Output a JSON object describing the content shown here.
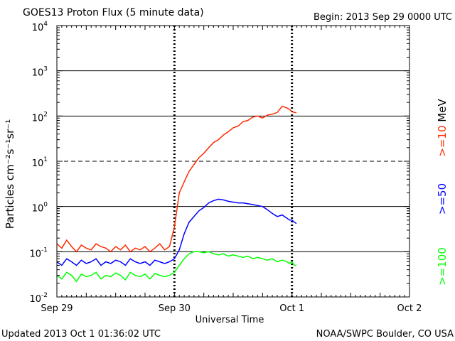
{
  "header": {
    "title": "GOES13 Proton Flux (5 minute data)",
    "begin": "Begin: 2013 Sep 29 0000 UTC"
  },
  "footer": {
    "updated": "Updated 2013 Oct  1 01:36:02 UTC",
    "credit": "NOAA/SWPC Boulder, CO USA"
  },
  "chart_data": {
    "type": "line",
    "title": "GOES13 Proton Flux (5 minute data)",
    "xlabel": "Universal Time",
    "ylabel": "Particles cm⁻²s⁻¹sr⁻¹",
    "y_scale": "log",
    "ylim": [
      0.01,
      10000
    ],
    "xlim_hours": [
      0,
      72
    ],
    "x_ticks": [
      {
        "label": "Sep 29",
        "hour": 0
      },
      {
        "label": "Sep 30",
        "hour": 24
      },
      {
        "label": "Oct 1",
        "hour": 48
      },
      {
        "label": "Oct 2",
        "hour": 72
      }
    ],
    "y_ticks": [
      {
        "mant": "10",
        "exp": "-2",
        "value": 0.01
      },
      {
        "mant": "10",
        "exp": "-1",
        "value": 0.1
      },
      {
        "mant": "10",
        "exp": "0",
        "value": 1
      },
      {
        "mant": "10",
        "exp": "1",
        "value": 10
      },
      {
        "mant": "10",
        "exp": "2",
        "value": 100
      },
      {
        "mant": "10",
        "exp": "3",
        "value": 1000
      },
      {
        "mant": "10",
        "exp": "4",
        "value": 10000
      }
    ],
    "hlines": [
      {
        "value": 1000,
        "style": "solid"
      },
      {
        "value": 100,
        "style": "solid"
      },
      {
        "value": 10,
        "style": "dashed"
      },
      {
        "value": 1,
        "style": "solid"
      },
      {
        "value": 0.1,
        "style": "solid"
      }
    ],
    "vlines_hours": [
      24,
      48
    ],
    "legend_placement": "right",
    "series": [
      {
        "name": ">=10",
        "legend_label": ">=10  MeV",
        "color": "#ff2a00",
        "x": [
          0,
          1,
          2,
          3,
          4,
          5,
          6,
          7,
          8,
          9,
          10,
          11,
          12,
          13,
          14,
          15,
          16,
          17,
          18,
          19,
          20,
          21,
          22,
          23,
          24,
          25,
          26,
          27,
          28,
          29,
          30,
          31,
          32,
          33,
          34,
          35,
          36,
          37,
          38,
          39,
          40,
          41,
          42,
          43,
          44,
          45,
          46,
          47,
          47.5,
          48,
          48.5,
          48.9
        ],
        "y": [
          0.15,
          0.12,
          0.18,
          0.13,
          0.1,
          0.14,
          0.12,
          0.11,
          0.15,
          0.13,
          0.12,
          0.1,
          0.13,
          0.11,
          0.14,
          0.1,
          0.12,
          0.11,
          0.13,
          0.1,
          0.12,
          0.15,
          0.11,
          0.13,
          0.35,
          2.0,
          3.5,
          6.0,
          8.5,
          12,
          15,
          20,
          26,
          30,
          38,
          45,
          55,
          60,
          75,
          80,
          95,
          100,
          90,
          105,
          110,
          120,
          165,
          150,
          140,
          125,
          120,
          118
        ]
      },
      {
        "name": ">=50",
        "legend_label": ">=50",
        "color": "#0000ff",
        "x": [
          0,
          1,
          2,
          3,
          4,
          5,
          6,
          7,
          8,
          9,
          10,
          11,
          12,
          13,
          14,
          15,
          16,
          17,
          18,
          19,
          20,
          21,
          22,
          23,
          24,
          25,
          26,
          27,
          28,
          29,
          30,
          31,
          32,
          33,
          34,
          35,
          36,
          37,
          38,
          39,
          40,
          41,
          42,
          43,
          44,
          45,
          46,
          47,
          47.5,
          48,
          48.5,
          48.9
        ],
        "y": [
          0.06,
          0.05,
          0.07,
          0.06,
          0.05,
          0.065,
          0.055,
          0.06,
          0.07,
          0.05,
          0.06,
          0.055,
          0.065,
          0.06,
          0.05,
          0.07,
          0.06,
          0.055,
          0.06,
          0.05,
          0.065,
          0.06,
          0.055,
          0.06,
          0.07,
          0.11,
          0.25,
          0.45,
          0.6,
          0.8,
          0.95,
          1.2,
          1.35,
          1.45,
          1.4,
          1.3,
          1.25,
          1.2,
          1.2,
          1.15,
          1.1,
          1.05,
          1.0,
          0.85,
          0.7,
          0.6,
          0.65,
          0.55,
          0.5,
          0.5,
          0.45,
          0.42
        ]
      },
      {
        "name": ">=100",
        "legend_label": ">=100",
        "color": "#00ff00",
        "x": [
          0,
          1,
          2,
          3,
          4,
          5,
          6,
          7,
          8,
          9,
          10,
          11,
          12,
          13,
          14,
          15,
          16,
          17,
          18,
          19,
          20,
          21,
          22,
          23,
          24,
          25,
          26,
          27,
          28,
          29,
          30,
          31,
          32,
          33,
          34,
          35,
          36,
          37,
          38,
          39,
          40,
          41,
          42,
          43,
          44,
          45,
          46,
          47,
          47.5,
          48,
          48.5,
          48.9
        ],
        "y": [
          0.03,
          0.025,
          0.035,
          0.03,
          0.022,
          0.032,
          0.028,
          0.03,
          0.035,
          0.025,
          0.03,
          0.028,
          0.034,
          0.03,
          0.024,
          0.035,
          0.03,
          0.028,
          0.032,
          0.025,
          0.033,
          0.03,
          0.028,
          0.03,
          0.035,
          0.05,
          0.07,
          0.09,
          0.1,
          0.1,
          0.095,
          0.1,
          0.09,
          0.085,
          0.09,
          0.08,
          0.085,
          0.08,
          0.075,
          0.08,
          0.07,
          0.075,
          0.07,
          0.065,
          0.07,
          0.06,
          0.065,
          0.06,
          0.055,
          0.06,
          0.05,
          0.05
        ]
      }
    ]
  }
}
